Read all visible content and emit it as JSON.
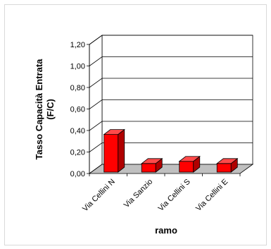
{
  "chart_data": {
    "type": "bar",
    "style": "3d",
    "categories": [
      "Via Cellini N",
      "Via Sanzio",
      "Via Cellini S",
      "Via Cellini E"
    ],
    "series": [
      {
        "values": [
          0.35,
          0.08,
          0.1,
          0.08
        ],
        "color": "#ff0000"
      }
    ],
    "ylabel": "Tasso Capacità Entrata",
    "ylabel_line2": "(F/C)",
    "xlabel": "ramo",
    "ylim": [
      0,
      1.2
    ],
    "yticks": [
      "0,00",
      "0,20",
      "0,40",
      "0,60",
      "0,80",
      "1,00",
      "1,20"
    ],
    "grid": true,
    "legend": "none",
    "colors": {
      "bar_front": "#ff0000",
      "bar_side": "#b00000",
      "bar_top": "#ff4a4a",
      "floor": "#c0c0c0",
      "grid": "#000000"
    }
  }
}
